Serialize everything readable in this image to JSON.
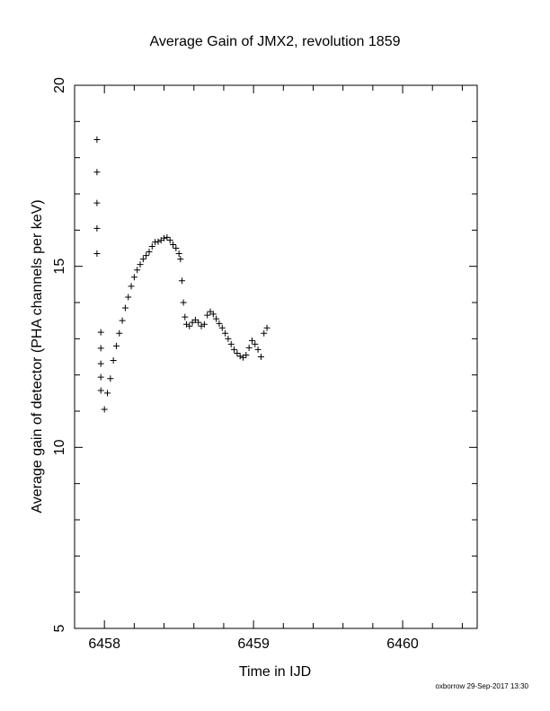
{
  "chart_data": {
    "type": "scatter",
    "title": "Average Gain of JMX2, revolution 1859",
    "xlabel": "Time in IJD",
    "ylabel": "Average gain of detector (PHA channels per keV)",
    "footer": "oxborrow 29-Sep-2017 13:30",
    "xlim": [
      6457.8,
      6460.5
    ],
    "ylim": [
      5,
      20
    ],
    "xticks": [
      6458,
      6459,
      6460
    ],
    "yticks": [
      5,
      10,
      15,
      20
    ],
    "xminorticks": [
      6458.2,
      6458.4,
      6458.6,
      6458.8,
      6459.2,
      6459.4,
      6459.6,
      6459.8,
      6460.2,
      6460.4
    ],
    "yminorticks": [
      6,
      7,
      8,
      9,
      11,
      12,
      13,
      14,
      16,
      17,
      18,
      19
    ],
    "color": "#000000",
    "x": [
      6457.95,
      6457.95,
      6457.95,
      6457.95,
      6457.95,
      6457.976,
      6457.976,
      6457.976,
      6457.976,
      6457.976,
      6458.0,
      6458.02,
      6458.04,
      6458.06,
      6458.08,
      6458.1,
      6458.12,
      6458.14,
      6458.16,
      6458.18,
      6458.2,
      6458.22,
      6458.24,
      6458.26,
      6458.28,
      6458.3,
      6458.32,
      6458.34,
      6458.36,
      6458.38,
      6458.4,
      6458.42,
      6458.44,
      6458.46,
      6458.48,
      6458.5,
      6458.51,
      6458.52,
      6458.53,
      6458.54,
      6458.55,
      6458.57,
      6458.59,
      6458.61,
      6458.63,
      6458.65,
      6458.67,
      6458.69,
      6458.71,
      6458.73,
      6458.75,
      6458.77,
      6458.79,
      6458.81,
      6458.83,
      6458.85,
      6458.87,
      6458.89,
      6458.91,
      6458.93,
      6458.95,
      6458.97,
      6458.99,
      6459.01,
      6459.03,
      6459.05,
      6459.07,
      6459.09
    ],
    "values": [
      18.5,
      17.6,
      16.75,
      16.05,
      15.35,
      13.18,
      12.74,
      12.31,
      11.94,
      11.57,
      11.05,
      11.5,
      11.9,
      12.4,
      12.8,
      13.15,
      13.5,
      13.85,
      14.15,
      14.45,
      14.7,
      14.9,
      15.05,
      15.2,
      15.3,
      15.4,
      15.55,
      15.67,
      15.68,
      15.72,
      15.78,
      15.8,
      15.72,
      15.6,
      15.5,
      15.35,
      15.2,
      14.6,
      14.0,
      13.6,
      13.4,
      13.35,
      13.45,
      13.52,
      13.45,
      13.35,
      13.4,
      13.65,
      13.75,
      13.68,
      13.55,
      13.42,
      13.3,
      13.15,
      13.0,
      12.85,
      12.7,
      12.6,
      12.52,
      12.48,
      12.55,
      12.75,
      12.95,
      12.85,
      12.7,
      12.5,
      13.15,
      13.3
    ]
  }
}
